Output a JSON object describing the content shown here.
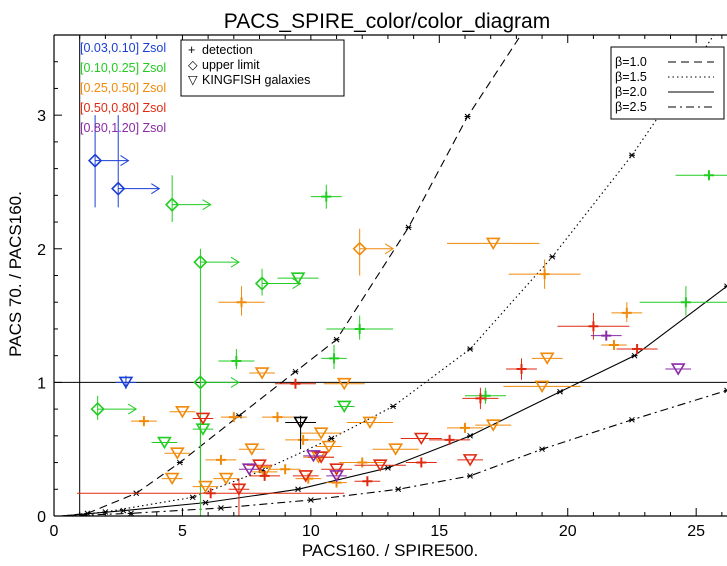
{
  "chart_data": {
    "type": "scatter",
    "title": "PACS_SPIRE_color/color_diagram",
    "xlabel": "PACS160. / SPIRE500.",
    "ylabel": "PACS 70. / PACS160.",
    "xlim": [
      0,
      26.2
    ],
    "ylim": [
      0,
      3.6
    ],
    "xticks": [
      0,
      5,
      10,
      15,
      20,
      25
    ],
    "yticks": [
      0,
      1,
      2,
      3
    ],
    "xtick_labels": [
      "0",
      "5",
      "10",
      "15",
      "20",
      "25"
    ],
    "ytick_labels": [
      "0",
      "1",
      "2",
      "3"
    ],
    "grid": false,
    "reference_lines": {
      "horizontal_y": 1.0,
      "vertical_x": 1.0
    },
    "metallicity_legend": {
      "placement": "top-left",
      "entries": [
        {
          "label": "[0.03,0.10] Zsol",
          "color": "#1a3fd4"
        },
        {
          "label": "[0.10,0.25] Zsol",
          "color": "#22cc22"
        },
        {
          "label": "[0.25,0.50] Zsol",
          "color": "#f08a0a"
        },
        {
          "label": "[0.50,0.80] Zsol",
          "color": "#e02a10"
        },
        {
          "label": "[0.80,1.20] Zsol",
          "color": "#8a2aa8"
        }
      ]
    },
    "symbol_legend": {
      "placement": "top-left",
      "entries": [
        {
          "symbol": "+",
          "label": "detection"
        },
        {
          "symbol": "◇",
          "label": "upper limit"
        },
        {
          "symbol": "▽",
          "label": "KINGFISH galaxies"
        }
      ]
    },
    "model_legend": {
      "placement": "top-right",
      "entries": [
        {
          "label": "β=1.0",
          "dash": "8,5"
        },
        {
          "label": "β=1.5",
          "dash": "1.5,3"
        },
        {
          "label": "β=2.0",
          "dash": ""
        },
        {
          "label": "β=2.5",
          "dash": "8,4,2,4"
        }
      ]
    },
    "model_series": [
      {
        "name": "β=1.0",
        "dash": "8,5",
        "points": [
          [
            0.3,
            0
          ],
          [
            1.3,
            0.02
          ],
          [
            3.2,
            0.17
          ],
          [
            4.9,
            0.4
          ],
          [
            7.2,
            0.75
          ],
          [
            9.4,
            1.08
          ],
          [
            11.0,
            1.32
          ],
          [
            13.8,
            2.16
          ],
          [
            16.1,
            2.99
          ],
          [
            19.2,
            3.9
          ]
        ]
      },
      {
        "name": "β=1.5",
        "dash": "1.5,3",
        "points": [
          [
            0.3,
            0
          ],
          [
            2.0,
            0.03
          ],
          [
            5.4,
            0.14
          ],
          [
            8.1,
            0.34
          ],
          [
            10.8,
            0.58
          ],
          [
            13.2,
            0.82
          ],
          [
            16.2,
            1.25
          ],
          [
            19.4,
            1.94
          ],
          [
            22.5,
            2.7
          ],
          [
            25.0,
            3.4
          ],
          [
            26.2,
            3.75
          ]
        ]
      },
      {
        "name": "β=2.0",
        "dash": "",
        "points": [
          [
            0.3,
            0
          ],
          [
            2.7,
            0.04
          ],
          [
            5.9,
            0.1
          ],
          [
            9.5,
            0.2
          ],
          [
            13.0,
            0.36
          ],
          [
            16.2,
            0.6
          ],
          [
            19.7,
            0.93
          ],
          [
            22.6,
            1.2
          ],
          [
            26.2,
            1.72
          ]
        ]
      },
      {
        "name": "β=2.5",
        "dash": "8,4,2,4",
        "points": [
          [
            0.3,
            0
          ],
          [
            3.0,
            0.02
          ],
          [
            6.5,
            0.06
          ],
          [
            10.0,
            0.12
          ],
          [
            13.4,
            0.2
          ],
          [
            16.2,
            0.3
          ],
          [
            19.0,
            0.5
          ],
          [
            22.5,
            0.72
          ],
          [
            26.2,
            0.94
          ]
        ]
      }
    ],
    "series": [
      {
        "name": "[0.03,0.10] Zsol",
        "color": "#1a3fd4",
        "points": [
          {
            "x": 1.6,
            "y": 2.66,
            "sym": "diamond",
            "ylo": 2.31,
            "yhi": 3.0,
            "arrow": 1.3
          },
          {
            "x": 2.5,
            "y": 2.45,
            "sym": "diamond",
            "ylo": 2.31,
            "yhi": 3.0,
            "arrow": 1.6
          },
          {
            "x": 2.8,
            "y": 1.0,
            "sym": "triangle",
            "xerr": 0.4,
            "ylo": 0.95,
            "yhi": 1.05
          }
        ]
      },
      {
        "name": "[0.10,0.25] Zsol",
        "color": "#22cc22",
        "points": [
          {
            "x": 4.6,
            "y": 2.33,
            "sym": "diamond",
            "ylo": 2.2,
            "yhi": 2.55,
            "arrow": 1.5
          },
          {
            "x": 10.6,
            "y": 2.39,
            "sym": "cross",
            "xerr": 0.6,
            "ylo": 2.3,
            "yhi": 2.48
          },
          {
            "x": 5.7,
            "y": 1.9,
            "sym": "diamond",
            "ylo": 0.0,
            "yhi": 2.0,
            "arrow": 1.5
          },
          {
            "x": 8.1,
            "y": 1.74,
            "sym": "diamond",
            "ylo": 1.65,
            "yhi": 1.85,
            "arrow": 1.5
          },
          {
            "x": 9.5,
            "y": 1.78,
            "sym": "triangle",
            "xerr": 0.8
          },
          {
            "x": 11.9,
            "y": 1.4,
            "sym": "cross",
            "xerr": 1.3,
            "ylo": 1.32,
            "yhi": 1.5
          },
          {
            "x": 7.1,
            "y": 1.16,
            "sym": "cross",
            "xerr": 0.7,
            "ylo": 1.1,
            "yhi": 1.25
          },
          {
            "x": 10.9,
            "y": 1.18,
            "sym": "cross",
            "xerr": 0.5,
            "ylo": 1.1,
            "yhi": 1.28
          },
          {
            "x": 5.7,
            "y": 1.0,
            "sym": "diamond",
            "ylo": 0.2,
            "yhi": 1.1,
            "arrow": 1.5
          },
          {
            "x": 1.7,
            "y": 0.8,
            "sym": "diamond",
            "ylo": 0.72,
            "yhi": 0.9,
            "arrow": 1.5
          },
          {
            "x": 11.3,
            "y": 0.82,
            "sym": "triangle",
            "xerr": 0.4
          },
          {
            "x": 4.3,
            "y": 0.55,
            "sym": "triangle",
            "xerr": 0.5
          },
          {
            "x": 5.8,
            "y": 0.65,
            "sym": "triangle",
            "xerr": 0.4
          },
          {
            "x": 16.8,
            "y": 0.9,
            "sym": "cross",
            "xerr": 0.8,
            "ylo": 0.84,
            "yhi": 0.96
          },
          {
            "x": 24.6,
            "y": 1.6,
            "sym": "cross",
            "xerr": 1.8,
            "ylo": 1.5,
            "yhi": 1.72
          },
          {
            "x": 25.5,
            "y": 2.55,
            "sym": "cross",
            "xerr": 1.3
          }
        ]
      },
      {
        "name": "[0.25,0.50] Zsol",
        "color": "#f08a0a",
        "points": [
          {
            "x": 11.9,
            "y": 2.0,
            "sym": "diamond",
            "ylo": 1.8,
            "yhi": 2.15,
            "arrow": 1.3
          },
          {
            "x": 17.1,
            "y": 2.04,
            "sym": "triangle",
            "xerr": 1.8
          },
          {
            "x": 19.1,
            "y": 1.81,
            "sym": "cross",
            "xerr": 1.4,
            "ylo": 1.7,
            "yhi": 1.92
          },
          {
            "x": 7.3,
            "y": 1.6,
            "sym": "cross",
            "xerr": 0.9,
            "ylo": 1.5,
            "yhi": 1.72
          },
          {
            "x": 22.3,
            "y": 1.52,
            "sym": "cross",
            "xerr": 0.6,
            "ylo": 1.45,
            "yhi": 1.6
          },
          {
            "x": 21.8,
            "y": 1.28,
            "sym": "cross",
            "xerr": 0.5
          },
          {
            "x": 19.2,
            "y": 1.18,
            "sym": "triangle",
            "xerr": 0.6
          },
          {
            "x": 8.1,
            "y": 1.07,
            "sym": "triangle",
            "xerr": 0.5
          },
          {
            "x": 19.0,
            "y": 0.97,
            "sym": "triangle",
            "xerr": 1.5
          },
          {
            "x": 11.3,
            "y": 0.99,
            "sym": "triangle",
            "xerr": 0.8
          },
          {
            "x": 5.0,
            "y": 0.78,
            "sym": "triangle",
            "xerr": 0.5
          },
          {
            "x": 7.0,
            "y": 0.74,
            "sym": "cross",
            "xerr": 0.5
          },
          {
            "x": 3.5,
            "y": 0.71,
            "sym": "cross",
            "xerr": 0.5
          },
          {
            "x": 8.7,
            "y": 0.74,
            "sym": "cross",
            "xerr": 0.6
          },
          {
            "x": 12.3,
            "y": 0.7,
            "sym": "triangle",
            "xerr": 0.9
          },
          {
            "x": 17.1,
            "y": 0.68,
            "sym": "triangle",
            "xerr": 0.7
          },
          {
            "x": 16.0,
            "y": 0.66,
            "sym": "cross",
            "xerr": 0.7
          },
          {
            "x": 10.4,
            "y": 0.62,
            "sym": "triangle",
            "xerr": 0.8
          },
          {
            "x": 9.7,
            "y": 0.57,
            "sym": "cross",
            "xerr": 0.7
          },
          {
            "x": 4.8,
            "y": 0.47,
            "sym": "triangle",
            "xerr": 0.5
          },
          {
            "x": 6.5,
            "y": 0.42,
            "sym": "cross",
            "xerr": 0.6
          },
          {
            "x": 13.3,
            "y": 0.5,
            "sym": "triangle",
            "xerr": 0.9
          },
          {
            "x": 8.2,
            "y": 0.33,
            "sym": "triangle",
            "xerr": 0.5
          },
          {
            "x": 6.7,
            "y": 0.28,
            "sym": "triangle",
            "xerr": 0.5
          },
          {
            "x": 10.3,
            "y": 0.44,
            "sym": "triangle",
            "xerr": 0.6
          },
          {
            "x": 12.0,
            "y": 0.4,
            "sym": "cross",
            "xerr": 0.9
          },
          {
            "x": 4.6,
            "y": 0.28,
            "sym": "triangle",
            "xerr": 0.4
          },
          {
            "x": 9.0,
            "y": 0.35,
            "sym": "cross",
            "xerr": 0.6
          },
          {
            "x": 10.7,
            "y": 0.52,
            "sym": "triangle",
            "xerr": 0.5
          },
          {
            "x": 5.9,
            "y": 0.22,
            "sym": "triangle",
            "xerr": 0.5
          },
          {
            "x": 7.7,
            "y": 0.5,
            "sym": "triangle",
            "xerr": 0.5
          },
          {
            "x": 9.9,
            "y": 0.28,
            "sym": "cross",
            "xerr": 0.5
          },
          {
            "x": 11.0,
            "y": 0.25,
            "sym": "cross",
            "xerr": 0.4
          }
        ]
      },
      {
        "name": "[0.50,0.80] Zsol",
        "color": "#e02a10",
        "points": [
          {
            "x": 21.0,
            "y": 1.42,
            "sym": "cross",
            "xerr": 1.4,
            "ylo": 1.32,
            "yhi": 1.52
          },
          {
            "x": 22.7,
            "y": 1.25,
            "sym": "cross",
            "xerr": 0.8
          },
          {
            "x": 18.2,
            "y": 1.1,
            "sym": "cross",
            "xerr": 0.6,
            "ylo": 1.02,
            "yhi": 1.18
          },
          {
            "x": 9.4,
            "y": 0.99,
            "sym": "cross",
            "xerr": 0.8
          },
          {
            "x": 16.6,
            "y": 0.88,
            "sym": "cross",
            "xerr": 0.7,
            "ylo": 0.8,
            "yhi": 0.96
          },
          {
            "x": 5.8,
            "y": 0.73,
            "sym": "triangle",
            "xerr": 0.4
          },
          {
            "x": 15.4,
            "y": 0.57,
            "sym": "cross",
            "xerr": 0.8
          },
          {
            "x": 14.3,
            "y": 0.58,
            "sym": "triangle",
            "xerr": 0.8
          },
          {
            "x": 16.2,
            "y": 0.42,
            "sym": "triangle",
            "xerr": 0.5
          },
          {
            "x": 12.7,
            "y": 0.38,
            "sym": "triangle",
            "xerr": 1.0
          },
          {
            "x": 11.0,
            "y": 0.35,
            "sym": "triangle",
            "xerr": 0.6
          },
          {
            "x": 8.2,
            "y": 0.3,
            "sym": "cross",
            "xerr": 0.6
          },
          {
            "x": 7.2,
            "y": 0.2,
            "sym": "triangle",
            "xerr": 0.4,
            "ylo": 0.0,
            "yhi": 0.28
          },
          {
            "x": 6.1,
            "y": 0.17,
            "sym": "cross",
            "xerr": 5.2
          },
          {
            "x": 9.8,
            "y": 0.3,
            "sym": "triangle",
            "xerr": 0.5
          },
          {
            "x": 10.4,
            "y": 0.44,
            "sym": "triangle",
            "xerr": 0.5
          },
          {
            "x": 14.3,
            "y": 0.4,
            "sym": "cross",
            "xerr": 0.6
          },
          {
            "x": 8.0,
            "y": 0.38,
            "sym": "triangle",
            "xerr": 0.5
          },
          {
            "x": 12.2,
            "y": 0.26,
            "sym": "cross",
            "xerr": 0.5
          }
        ]
      },
      {
        "name": "[0.80,1.20] Zsol",
        "color": "#8a2aa8",
        "points": [
          {
            "x": 21.5,
            "y": 1.35,
            "sym": "cross",
            "xerr": 0.6
          },
          {
            "x": 24.3,
            "y": 1.1,
            "sym": "triangle",
            "xerr": 0.5
          },
          {
            "x": 10.1,
            "y": 0.45,
            "sym": "triangle",
            "xerr": 0.4
          },
          {
            "x": 7.6,
            "y": 0.35,
            "sym": "triangle",
            "xerr": 0.4
          },
          {
            "x": 11.0,
            "y": 0.3,
            "sym": "triangle",
            "xerr": 0.4
          }
        ]
      },
      {
        "name": "",
        "color": "#000000",
        "points": [
          {
            "x": 9.6,
            "y": 0.7,
            "sym": "triangle",
            "xerr": 0.6,
            "ylo": 0.5,
            "yhi": 0.75
          }
        ]
      }
    ]
  }
}
